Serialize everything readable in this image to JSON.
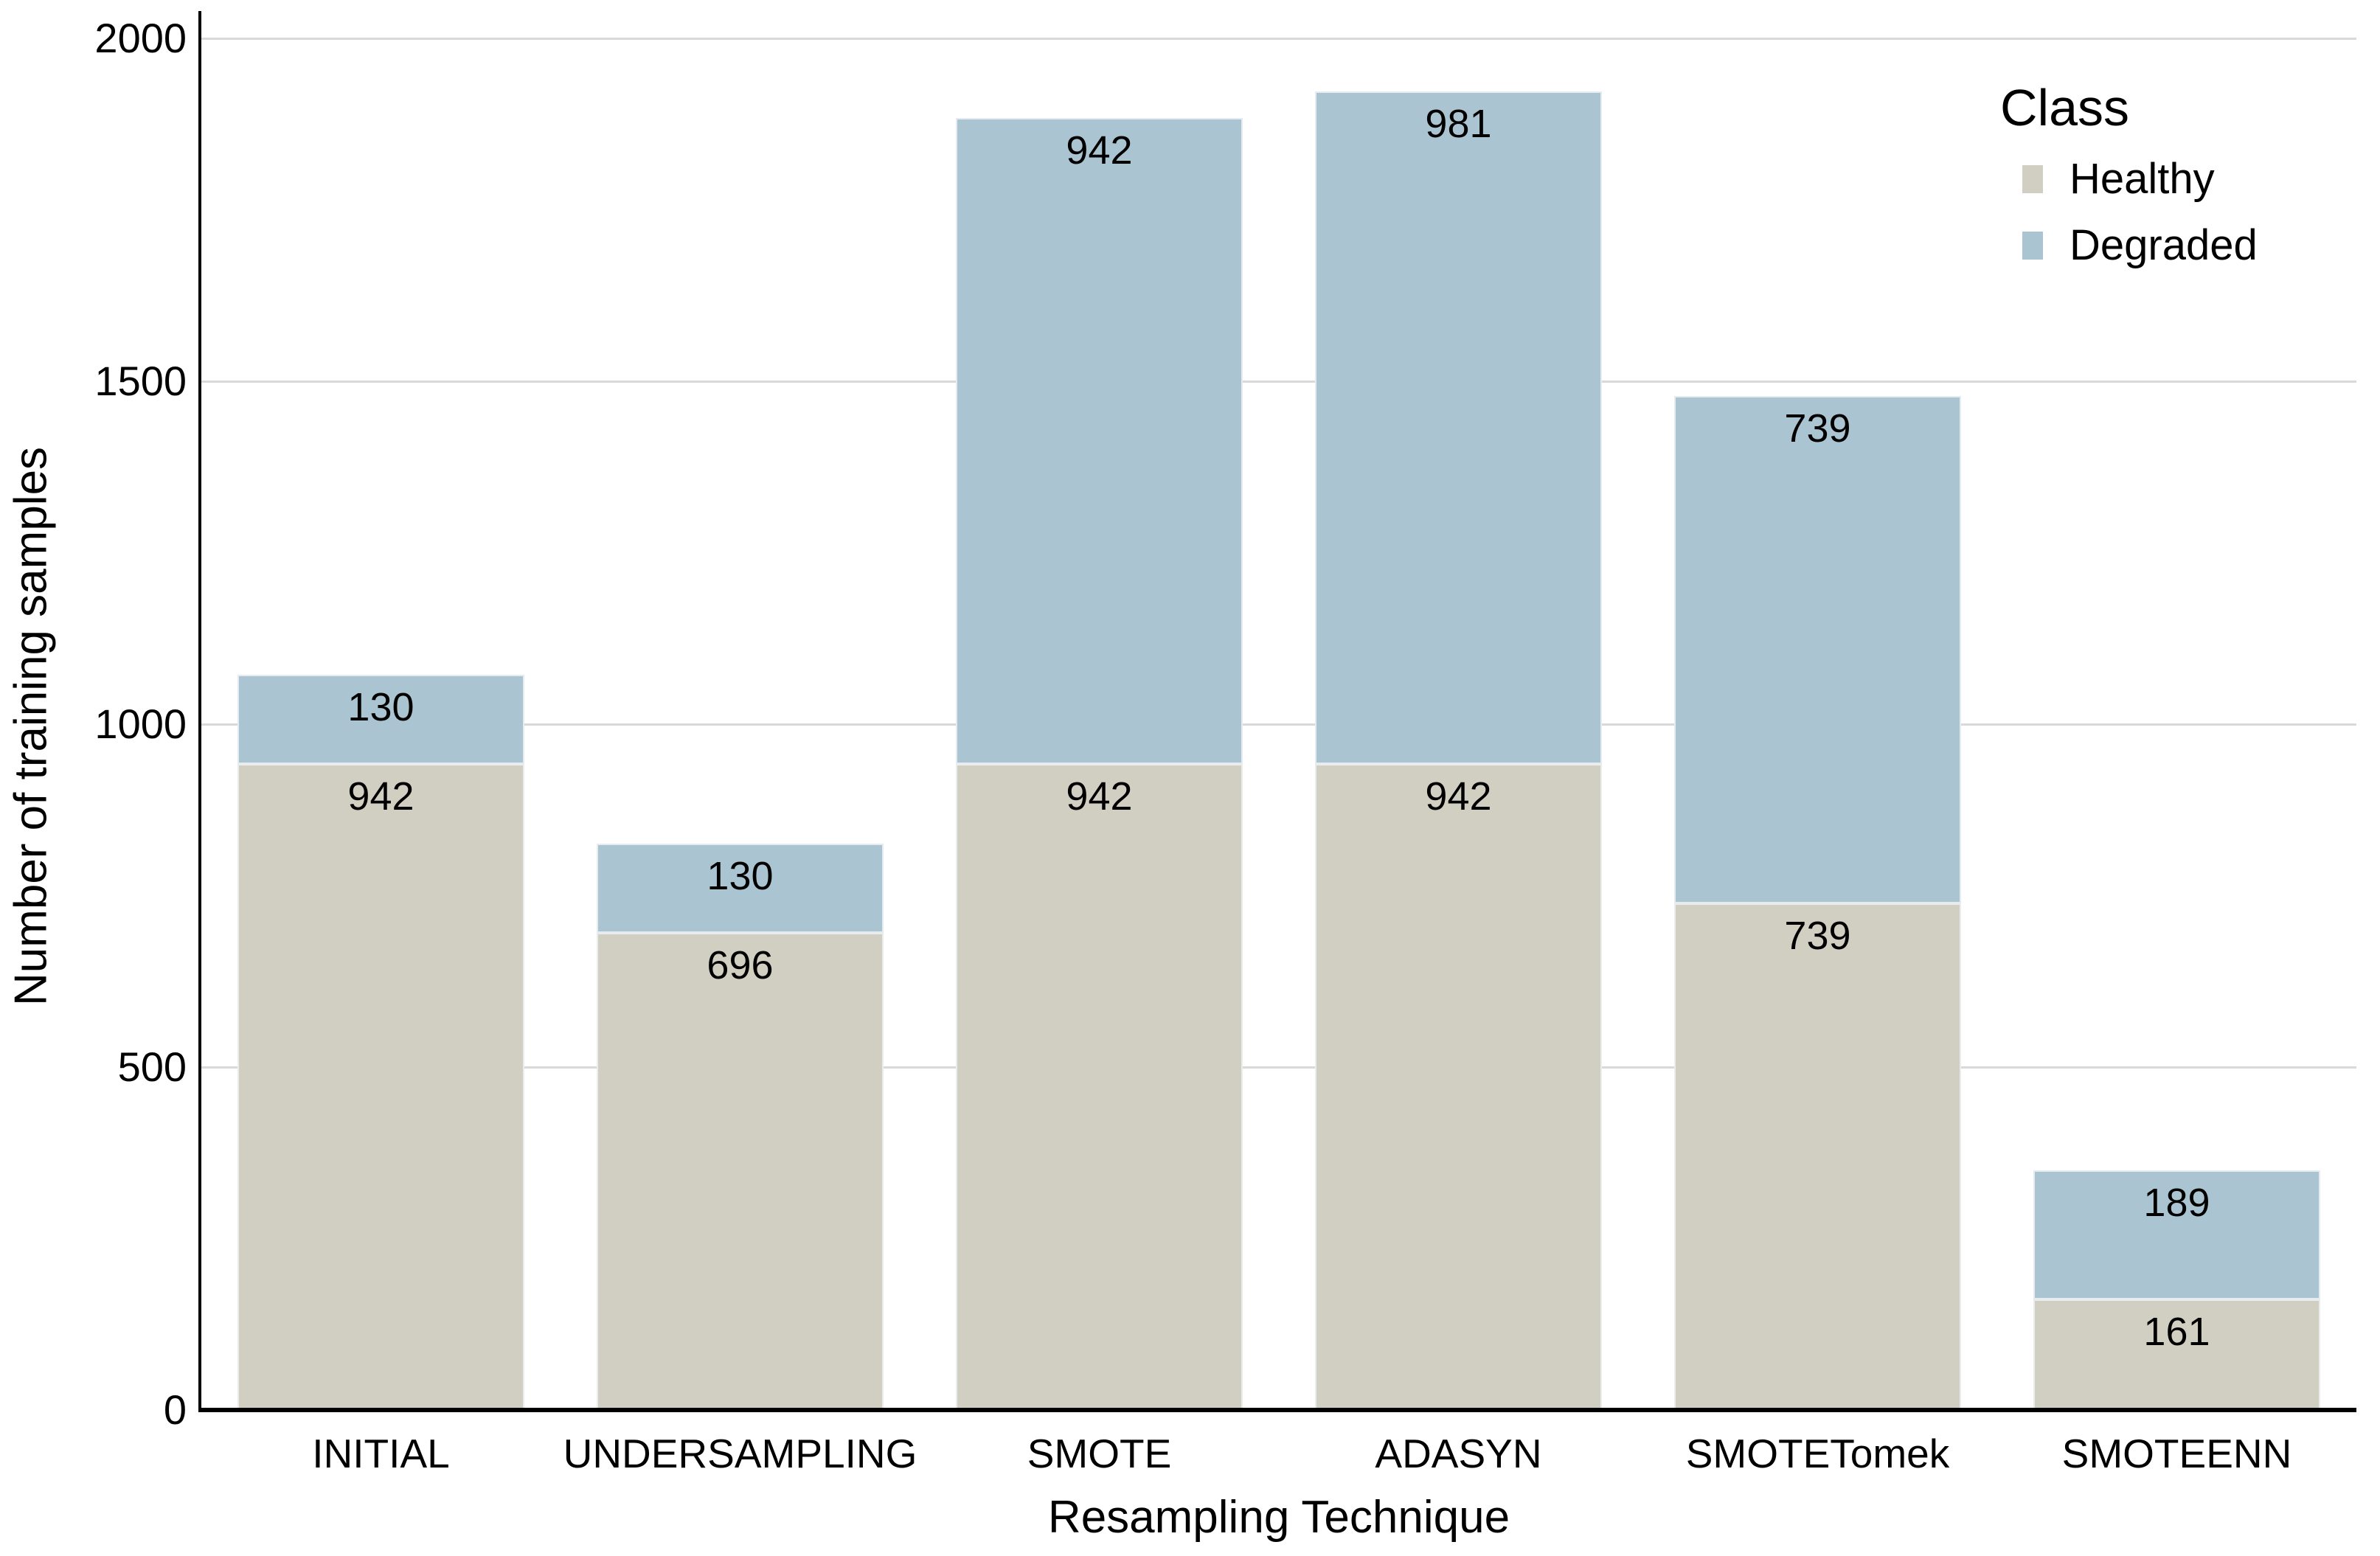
{
  "chart_data": {
    "type": "bar",
    "stacked": true,
    "categories": [
      "INITIAL",
      "UNDERSAMPLING",
      "SMOTE",
      "ADASYN",
      "SMOTETomek",
      "SMOTEENN"
    ],
    "series": [
      {
        "name": "Healthy",
        "color": "#d1cfc1",
        "values": [
          942,
          696,
          942,
          942,
          739,
          161
        ]
      },
      {
        "name": "Degraded",
        "color": "#aac4d1",
        "values": [
          130,
          130,
          942,
          981,
          739,
          189
        ]
      }
    ],
    "totals": [
      1072,
      826,
      1884,
      1923,
      1478,
      350
    ],
    "title": "",
    "xlabel": "Resampling Technique",
    "ylabel": "Number of training samples",
    "ylim": [
      0,
      2000
    ],
    "yticks": [
      0,
      500,
      1000,
      1500,
      2000
    ],
    "grid": "horizontal",
    "bar_labels": true,
    "legend": {
      "title": "Class",
      "position": "upper right"
    }
  }
}
